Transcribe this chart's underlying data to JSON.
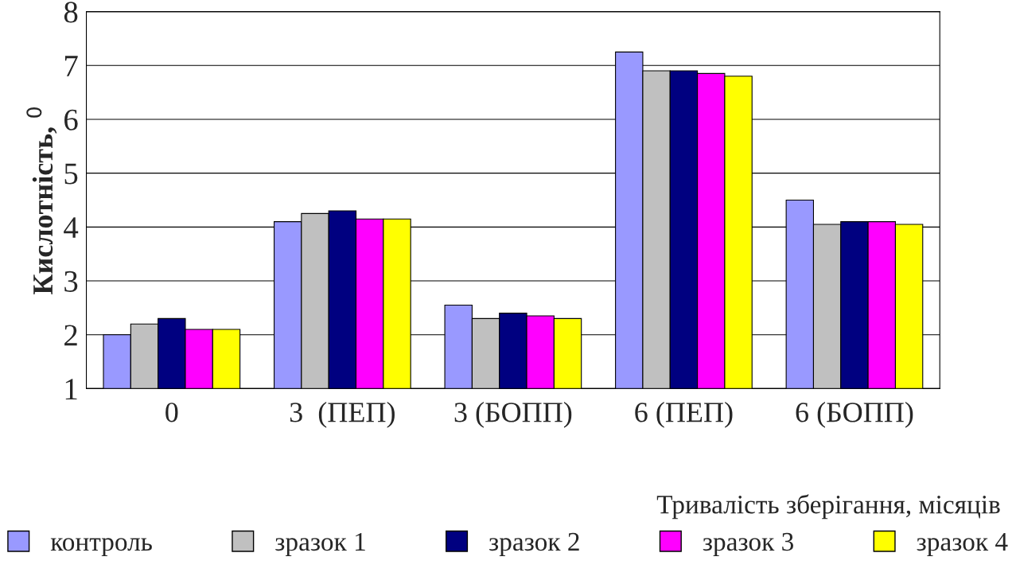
{
  "chart_data": {
    "type": "bar",
    "xlabel": "Тривалість зберігання, місяців",
    "ylabel": "Кислотність, $^{0}$",
    "categories": [
      "0",
      "3  (ПЕП)",
      "3 (БОПП)",
      "6 (ПЕП)",
      "6 (БОПП)"
    ],
    "series": [
      {
        "name": "контроль",
        "color": "#9999ff",
        "values": [
          2.0,
          4.1,
          2.55,
          7.25,
          4.5
        ]
      },
      {
        "name": "зразок 1",
        "color": "#c0c0c0",
        "values": [
          2.2,
          4.25,
          2.3,
          6.9,
          4.05
        ]
      },
      {
        "name": "зразок 2",
        "color": "#000080",
        "values": [
          2.3,
          4.3,
          2.4,
          6.9,
          4.1
        ]
      },
      {
        "name": "зразок 3",
        "color": "#ff00ff",
        "values": [
          2.1,
          4.15,
          2.35,
          6.85,
          4.1
        ]
      },
      {
        "name": "зразок 4",
        "color": "#ffff00",
        "values": [
          2.1,
          4.15,
          2.3,
          6.8,
          4.05
        ]
      }
    ],
    "ylim": [
      1,
      8
    ],
    "yticks": [
      1,
      2,
      3,
      4,
      5,
      6,
      7,
      8
    ],
    "grid": "y",
    "legend": "bottom"
  }
}
